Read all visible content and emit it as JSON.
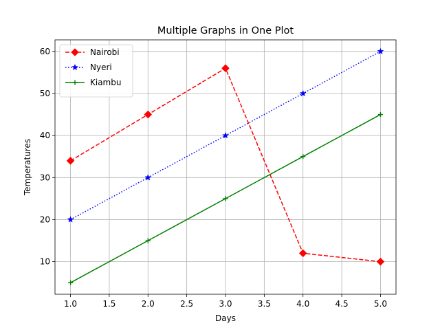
{
  "chart_data": {
    "type": "line",
    "title": "Multiple Graphs in One Plot",
    "xlabel": "Days",
    "ylabel": "Temperatures",
    "x": [
      1,
      2,
      3,
      4,
      5
    ],
    "xlim": [
      0.8,
      5.2
    ],
    "ylim": [
      2.25,
      62.75
    ],
    "xticks": [
      1.0,
      1.5,
      2.0,
      2.5,
      3.0,
      3.5,
      4.0,
      4.5,
      5.0
    ],
    "yticks": [
      10,
      20,
      30,
      40,
      50,
      60
    ],
    "grid": true,
    "legend_position": "top-left",
    "series": [
      {
        "name": "Nairobi",
        "values": [
          34,
          45,
          56,
          12,
          10
        ],
        "color": "#ff0000",
        "linestyle": "dashed",
        "marker": "diamond"
      },
      {
        "name": "Nyeri",
        "values": [
          20,
          30,
          40,
          50,
          60
        ],
        "color": "#0000ff",
        "linestyle": "dotted",
        "marker": "star"
      },
      {
        "name": "Kiambu",
        "values": [
          5,
          15,
          25,
          35,
          45
        ],
        "color": "#008000",
        "linestyle": "solid",
        "marker": "plus"
      }
    ]
  }
}
